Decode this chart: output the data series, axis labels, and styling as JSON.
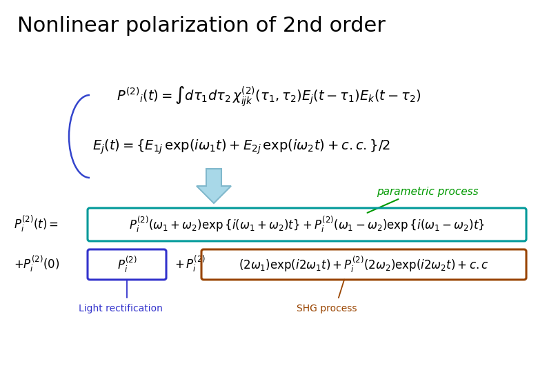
{
  "title": "Nonlinear polarization of 2nd order",
  "title_fontsize": 22,
  "title_fontweight": "normal",
  "background_color": "#ffffff",
  "arrow_fill": "#a8d8e8",
  "arrow_edge": "#80b8cc",
  "parametric_label": "parametric process",
  "parametric_color": "#009900",
  "light_rect_label": "Light rectification",
  "light_rect_color": "#3333cc",
  "shg_label": "SHG process",
  "shg_color": "#994400",
  "green_box_color": "#009999",
  "blue_box_color": "#3333cc",
  "brown_box_color": "#994400",
  "blue_arrow_color": "#3344cc",
  "eq_fontsize": 14,
  "eq3_fontsize": 12
}
